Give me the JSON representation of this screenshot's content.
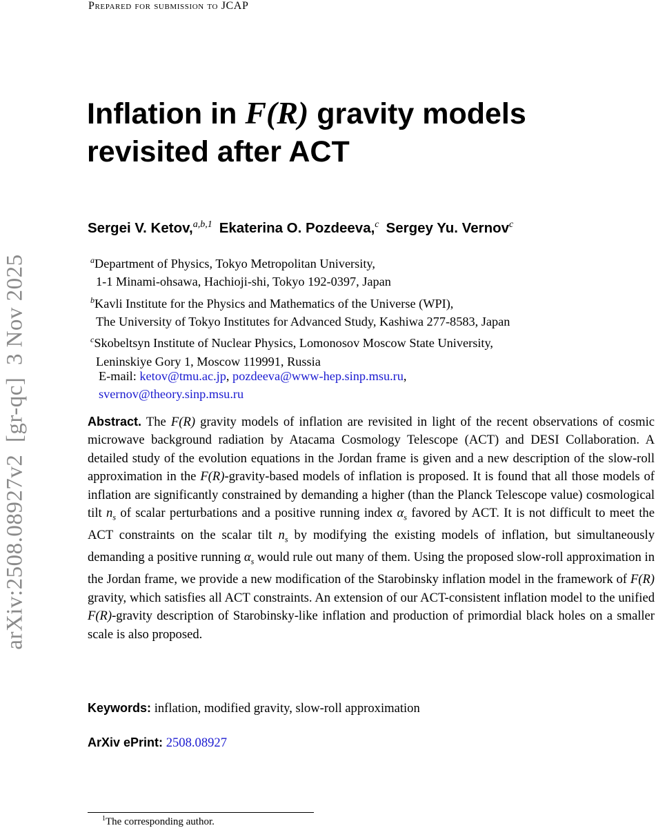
{
  "header": {
    "text": "Prepared for submission to JCAP"
  },
  "side_stamp": "arXiv:2508.08927v2  [gr-qc]  3 Nov 2025",
  "title": [
    "Inflation in ",
    {
      "math": "F(R)"
    },
    " gravity models revisited after ACT"
  ],
  "authors": [
    {
      "name": "Sergei V. Ketov,",
      "sup": "a,b,1"
    },
    {
      "name": "Ekaterina O. Pozdeeva,",
      "sup": "c"
    },
    {
      "name": "Sergey Yu. Vernov",
      "sup": "c"
    }
  ],
  "affiliations": [
    {
      "label": "a",
      "lines": [
        "Department of Physics, Tokyo Metropolitan University,",
        "1-1 Minami-ohsawa, Hachioji-shi, Tokyo 192-0397, Japan"
      ]
    },
    {
      "label": "b",
      "lines": [
        "Kavli Institute for the Physics and Mathematics of the Universe (WPI),",
        "The University of Tokyo Institutes for Advanced Study, Kashiwa 277-8583, Japan"
      ]
    },
    {
      "label": "c",
      "lines": [
        "Skobeltsyn Institute of Nuclear Physics, Lomonosov Moscow State University,",
        "Leninskiye Gory 1, Moscow 119991, Russia"
      ]
    }
  ],
  "email": {
    "label": "E-mail:",
    "separator": ",",
    "addresses": [
      "ketov@tmu.ac.jp",
      "pozdeeva@www-hep.sinp.msu.ru",
      "svernov@theory.sinp.msu.ru"
    ]
  },
  "abstract": {
    "label": "Abstract.",
    "parts": [
      "The ",
      {
        "math": "F(R)"
      },
      " gravity models of inflation are revisited in light of the recent observations of cosmic microwave background radiation by Atacama Cosmology Telescope (ACT) and DESI Collaboration. A detailed study of the evolution equations in the Jordan frame is given and a new description of the slow-roll approximation in the ",
      {
        "math": "F(R)"
      },
      "-gravity-based models of inflation is proposed. It is found that all those models of inflation are significantly constrained by demanding a higher (than the Planck Telescope value) cosmological tilt ",
      {
        "math": "n",
        "sub": "s"
      },
      " of scalar perturbations and a positive running index ",
      {
        "math": "α",
        "sub": "s"
      },
      " favored by ACT. It is not difficult to meet the ACT constraints on the scalar tilt ",
      {
        "math": "n",
        "sub": "s"
      },
      " by modifying the existing models of inflation, but simultaneously demanding a positive running ",
      {
        "math": "α",
        "sub": "s"
      },
      " would rule out many of them. Using the proposed slow-roll approximation in the Jordan frame, we provide a new modification of the Starobinsky inflation model in the framework of ",
      {
        "math": "F(R)"
      },
      " gravity, which satisfies all ACT constraints. An extension of our ACT-consistent inflation model to the unified ",
      {
        "math": "F(R)"
      },
      "-gravity description of Starobinsky-like inflation and production of primordial black holes on a smaller scale is also proposed."
    ]
  },
  "keywords": {
    "label": "Keywords:",
    "text": "inflation, modified gravity, slow-roll approximation"
  },
  "eprint": {
    "label": "ArXiv ePrint:",
    "value": "2508.08927"
  },
  "footnote": {
    "mark": "1",
    "text": "The corresponding author."
  }
}
